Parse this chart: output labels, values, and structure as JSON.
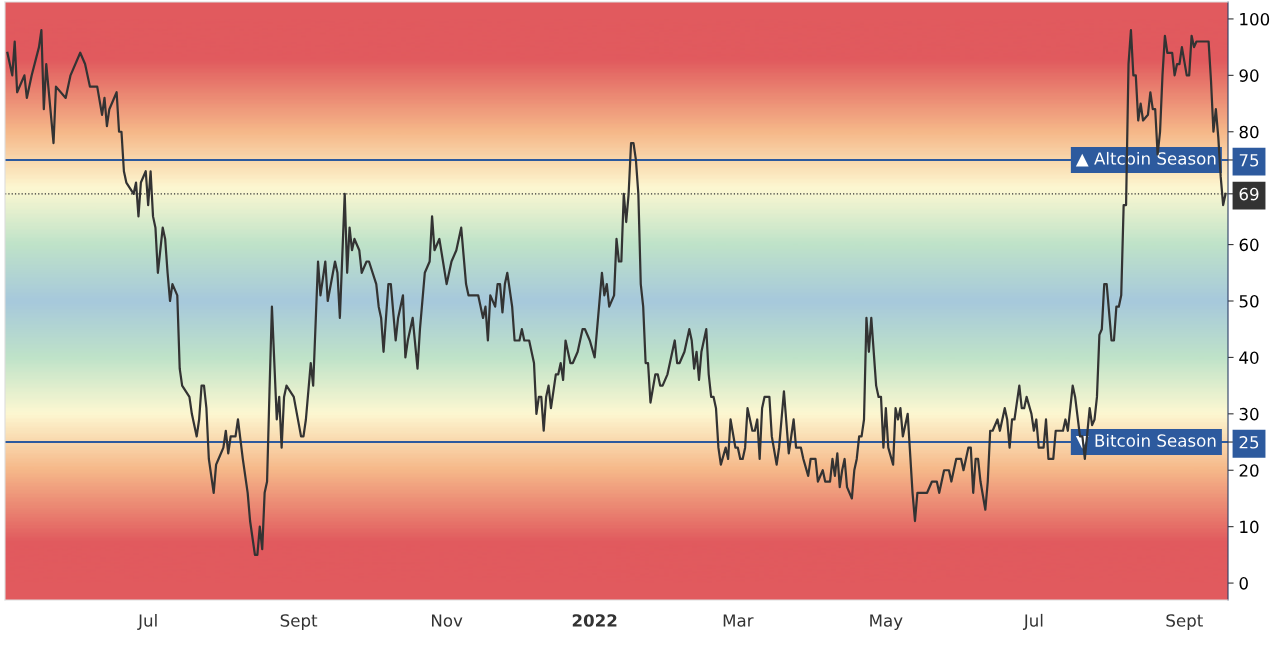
{
  "chart_data": {
    "type": "line",
    "xlim": [
      "2021-05-03",
      "2022-09-19"
    ],
    "xticks": [
      {
        "value": "2021-07-01",
        "label": "Jul"
      },
      {
        "value": "2021-09-01",
        "label": "Sept"
      },
      {
        "value": "2021-11-01",
        "label": "Nov"
      },
      {
        "value": "2022-01-01",
        "label": "2022"
      },
      {
        "value": "2022-03-01",
        "label": "Mar"
      },
      {
        "value": "2022-05-01",
        "label": "May"
      },
      {
        "value": "2022-07-01",
        "label": "Jul"
      },
      {
        "value": "2022-09-01",
        "label": "Sept"
      }
    ],
    "ylim": [
      -3,
      103
    ],
    "yticks": [
      0,
      10,
      20,
      25,
      30,
      40,
      50,
      60,
      69,
      75,
      80,
      90,
      100
    ],
    "grid": false,
    "legend": false,
    "marker": "none",
    "line_style": "solid",
    "ref_lines": [
      {
        "axis": "y",
        "value": 75,
        "label": "▲ Altcoin Season",
        "color": "#2d5a9e",
        "line_style": "solid"
      },
      {
        "axis": "y",
        "value": 25,
        "label": "▼ Bitcoin Season",
        "color": "#2d5a9e",
        "line_style": "solid"
      },
      {
        "axis": "y",
        "value": 69,
        "label": null,
        "color": "#333333",
        "line_style": "dotted"
      }
    ],
    "series": [
      {
        "color": "#333333",
        "x": [
          "2021-05-04",
          "2021-05-06",
          "2021-05-07",
          "2021-05-08",
          "2021-05-11",
          "2021-05-12",
          "2021-05-14",
          "2021-05-17",
          "2021-05-18",
          "2021-05-19",
          "2021-05-20",
          "2021-05-23",
          "2021-05-24",
          "2021-05-28",
          "2021-05-30",
          "2021-06-03",
          "2021-06-05",
          "2021-06-07",
          "2021-06-10",
          "2021-06-12",
          "2021-06-13",
          "2021-06-14",
          "2021-06-15",
          "2021-06-18",
          "2021-06-19",
          "2021-06-20",
          "2021-06-21",
          "2021-06-22",
          "2021-06-25",
          "2021-06-26",
          "2021-06-27",
          "2021-06-28",
          "2021-06-30",
          "2021-07-01",
          "2021-07-02",
          "2021-07-03",
          "2021-07-04",
          "2021-07-05",
          "2021-07-07",
          "2021-07-08",
          "2021-07-09",
          "2021-07-10",
          "2021-07-11",
          "2021-07-13",
          "2021-07-14",
          "2021-07-15",
          "2021-07-18",
          "2021-07-19",
          "2021-07-21",
          "2021-07-22",
          "2021-07-23",
          "2021-07-24",
          "2021-07-25",
          "2021-07-26",
          "2021-07-28",
          "2021-07-29",
          "2021-07-30",
          "2021-08-01",
          "2021-08-02",
          "2021-08-03",
          "2021-08-04",
          "2021-08-06",
          "2021-08-07",
          "2021-08-09",
          "2021-08-11",
          "2021-08-12",
          "2021-08-14",
          "2021-08-15",
          "2021-08-16",
          "2021-08-17",
          "2021-08-18",
          "2021-08-19",
          "2021-08-20",
          "2021-08-21",
          "2021-08-23",
          "2021-08-24",
          "2021-08-25",
          "2021-08-26",
          "2021-08-27",
          "2021-08-30",
          "2021-09-02",
          "2021-09-03",
          "2021-09-04",
          "2021-09-06",
          "2021-09-07",
          "2021-09-09",
          "2021-09-10",
          "2021-09-12",
          "2021-09-13",
          "2021-09-16",
          "2021-09-17",
          "2021-09-18",
          "2021-09-20",
          "2021-09-21",
          "2021-09-22",
          "2021-09-23",
          "2021-09-24",
          "2021-09-26",
          "2021-09-27",
          "2021-09-29",
          "2021-09-30",
          "2021-10-03",
          "2021-10-04",
          "2021-10-05",
          "2021-10-06",
          "2021-10-08",
          "2021-10-09",
          "2021-10-11",
          "2021-10-12",
          "2021-10-14",
          "2021-10-15",
          "2021-10-16",
          "2021-10-18",
          "2021-10-20",
          "2021-10-21",
          "2021-10-23",
          "2021-10-25",
          "2021-10-26",
          "2021-10-27",
          "2021-10-29",
          "2021-11-01",
          "2021-11-03",
          "2021-11-05",
          "2021-11-07",
          "2021-11-09",
          "2021-11-10",
          "2021-11-14",
          "2021-11-16",
          "2021-11-17",
          "2021-11-18",
          "2021-11-19",
          "2021-11-21",
          "2021-11-22",
          "2021-11-23",
          "2021-11-24",
          "2021-11-25",
          "2021-11-26",
          "2021-11-28",
          "2021-11-29",
          "2021-12-01",
          "2021-12-02",
          "2021-12-03",
          "2021-12-05",
          "2021-12-07",
          "2021-12-08",
          "2021-12-09",
          "2021-12-10",
          "2021-12-11",
          "2021-12-12",
          "2021-12-13",
          "2021-12-14",
          "2021-12-16",
          "2021-12-17",
          "2021-12-18",
          "2021-12-19",
          "2021-12-20",
          "2021-12-21",
          "2021-12-22",
          "2021-12-23",
          "2021-12-25",
          "2021-12-27",
          "2021-12-28",
          "2021-12-30",
          "2022-01-01",
          "2022-01-02",
          "2022-01-04",
          "2022-01-05",
          "2022-01-06",
          "2022-01-07",
          "2022-01-09",
          "2022-01-10",
          "2022-01-11",
          "2022-01-12",
          "2022-01-13",
          "2022-01-14",
          "2022-01-15",
          "2022-01-16",
          "2022-01-17",
          "2022-01-18",
          "2022-01-19",
          "2022-01-20",
          "2022-01-21",
          "2022-01-22",
          "2022-01-23",
          "2022-01-24",
          "2022-01-26",
          "2022-01-27",
          "2022-01-28",
          "2022-01-29",
          "2022-01-31",
          "2022-02-03",
          "2022-02-04",
          "2022-02-05",
          "2022-02-07",
          "2022-02-09",
          "2022-02-10",
          "2022-02-11",
          "2022-02-12",
          "2022-02-13",
          "2022-02-14",
          "2022-02-16",
          "2022-02-17",
          "2022-02-18",
          "2022-02-19",
          "2022-02-20",
          "2022-02-21",
          "2022-02-22",
          "2022-02-24",
          "2022-02-25",
          "2022-02-26",
          "2022-02-28",
          "2022-03-01",
          "2022-03-02",
          "2022-03-03",
          "2022-03-04",
          "2022-03-05",
          "2022-03-07",
          "2022-03-08",
          "2022-03-09",
          "2022-03-10",
          "2022-03-11",
          "2022-03-12",
          "2022-03-14",
          "2022-03-15",
          "2022-03-17",
          "2022-03-18",
          "2022-03-20",
          "2022-03-22",
          "2022-03-24",
          "2022-03-25",
          "2022-03-27",
          "2022-03-28",
          "2022-03-30",
          "2022-03-31",
          "2022-04-02",
          "2022-04-03",
          "2022-04-05",
          "2022-04-06",
          "2022-04-08",
          "2022-04-09",
          "2022-04-10",
          "2022-04-11",
          "2022-04-12",
          "2022-04-13",
          "2022-04-14",
          "2022-04-15",
          "2022-04-17",
          "2022-04-18",
          "2022-04-19",
          "2022-04-20",
          "2022-04-21",
          "2022-04-22",
          "2022-04-23",
          "2022-04-24",
          "2022-04-25",
          "2022-04-27",
          "2022-04-28",
          "2022-04-29",
          "2022-04-30",
          "2022-05-01",
          "2022-05-02",
          "2022-05-04",
          "2022-05-05",
          "2022-05-06",
          "2022-05-07",
          "2022-05-08",
          "2022-05-10",
          "2022-05-12",
          "2022-05-13",
          "2022-05-14",
          "2022-05-16",
          "2022-05-18",
          "2022-05-20",
          "2022-05-22",
          "2022-05-23",
          "2022-05-25",
          "2022-05-27",
          "2022-05-28",
          "2022-05-30",
          "2022-06-01",
          "2022-06-02",
          "2022-06-04",
          "2022-06-05",
          "2022-06-06",
          "2022-06-07",
          "2022-06-08",
          "2022-06-09",
          "2022-06-11",
          "2022-06-12",
          "2022-06-13",
          "2022-06-14",
          "2022-06-16",
          "2022-06-17",
          "2022-06-19",
          "2022-06-20",
          "2022-06-21",
          "2022-06-22",
          "2022-06-23",
          "2022-06-25",
          "2022-06-26",
          "2022-06-27",
          "2022-06-28",
          "2022-06-30",
          "2022-07-01",
          "2022-07-02",
          "2022-07-03",
          "2022-07-05",
          "2022-07-06",
          "2022-07-07",
          "2022-07-09",
          "2022-07-10",
          "2022-07-13",
          "2022-07-14",
          "2022-07-15",
          "2022-07-17",
          "2022-07-18",
          "2022-07-20",
          "2022-07-21",
          "2022-07-22",
          "2022-07-24",
          "2022-07-25",
          "2022-07-26",
          "2022-07-27",
          "2022-07-28",
          "2022-07-29",
          "2022-07-30",
          "2022-07-31",
          "2022-08-02",
          "2022-08-03",
          "2022-08-04",
          "2022-08-05",
          "2022-08-06",
          "2022-08-07",
          "2022-08-08",
          "2022-08-09",
          "2022-08-10",
          "2022-08-11",
          "2022-08-12",
          "2022-08-13",
          "2022-08-14",
          "2022-08-15",
          "2022-08-17",
          "2022-08-18",
          "2022-08-19",
          "2022-08-20",
          "2022-08-21",
          "2022-08-22",
          "2022-08-23",
          "2022-08-24",
          "2022-08-25",
          "2022-08-27",
          "2022-08-28",
          "2022-08-29",
          "2022-08-30",
          "2022-08-31",
          "2022-09-02",
          "2022-09-03",
          "2022-09-04",
          "2022-09-05",
          "2022-09-06",
          "2022-09-11",
          "2022-09-12",
          "2022-09-13",
          "2022-09-14",
          "2022-09-15",
          "2022-09-16",
          "2022-09-17",
          "2022-09-18"
        ],
        "values": [
          94,
          90,
          96,
          87,
          90,
          86,
          90,
          95,
          98,
          84,
          92,
          78,
          88,
          86,
          90,
          94,
          92,
          88,
          88,
          83,
          86,
          81,
          84,
          87,
          80,
          80,
          73,
          71,
          69,
          71,
          65,
          71,
          73,
          67,
          73,
          65,
          63,
          55,
          63,
          61,
          55,
          50,
          53,
          51,
          38,
          35,
          33,
          30,
          26,
          29,
          35,
          35,
          31,
          22,
          16,
          21,
          22,
          24,
          27,
          23,
          26,
          26,
          29,
          22,
          16,
          11,
          5,
          5,
          10,
          6,
          16,
          18,
          34,
          49,
          29,
          33,
          24,
          33,
          35,
          33,
          26,
          26,
          29,
          39,
          35,
          57,
          51,
          57,
          50,
          57,
          55,
          47,
          69,
          55,
          63,
          59,
          61,
          59,
          55,
          57,
          57,
          53,
          49,
          47,
          41,
          53,
          53,
          43,
          47,
          51,
          40,
          43,
          47,
          38,
          45,
          55,
          57,
          65,
          59,
          61,
          53,
          57,
          59,
          63,
          53,
          51,
          51,
          47,
          49,
          43,
          51,
          49,
          53,
          53,
          48,
          53,
          55,
          49,
          43,
          43,
          45,
          43,
          43,
          39,
          30,
          33,
          33,
          27,
          33,
          35,
          31,
          37,
          37,
          39,
          36,
          43,
          41,
          39,
          39,
          41,
          45,
          45,
          43,
          40,
          45,
          55,
          51,
          53,
          49,
          51,
          61,
          57,
          57,
          69,
          64,
          69,
          78,
          78,
          75,
          69,
          53,
          49,
          39,
          39,
          32,
          37,
          37,
          35,
          35,
          37,
          43,
          39,
          39,
          41,
          45,
          43,
          38,
          41,
          36,
          41,
          45,
          37,
          33,
          33,
          31,
          24,
          21,
          24,
          22,
          29,
          24,
          24,
          22,
          22,
          24,
          31,
          27,
          27,
          29,
          22,
          31,
          33,
          33,
          26,
          21,
          24,
          34,
          23,
          29,
          24,
          24,
          22,
          19,
          22,
          22,
          18,
          20,
          18,
          18,
          22,
          19,
          23,
          17,
          20,
          22,
          17,
          15,
          20,
          22,
          26,
          26,
          29,
          47,
          41,
          47,
          35,
          33,
          33,
          24,
          31,
          24,
          21,
          31,
          29,
          31,
          26,
          30,
          16,
          11,
          16,
          16,
          16,
          18,
          18,
          16,
          20,
          20,
          18,
          22,
          22,
          20,
          24,
          24,
          16,
          22,
          22,
          18,
          13,
          18,
          27,
          27,
          29,
          27,
          31,
          29,
          24,
          29,
          29,
          35,
          31,
          31,
          33,
          30,
          27,
          29,
          24,
          24,
          29,
          22,
          22,
          27,
          27,
          29,
          27,
          35,
          33,
          26,
          26,
          22,
          31,
          28,
          29,
          33,
          44,
          45,
          53,
          53,
          43,
          43,
          49,
          49,
          51,
          67,
          67,
          92,
          98,
          90,
          90,
          82,
          85,
          82,
          83,
          87,
          84,
          84,
          76,
          80,
          90,
          97,
          94,
          94,
          90,
          92,
          92,
          95,
          90,
          90,
          97,
          95,
          96,
          96,
          89,
          80,
          84,
          79,
          72,
          67,
          69
        ]
      }
    ]
  }
}
